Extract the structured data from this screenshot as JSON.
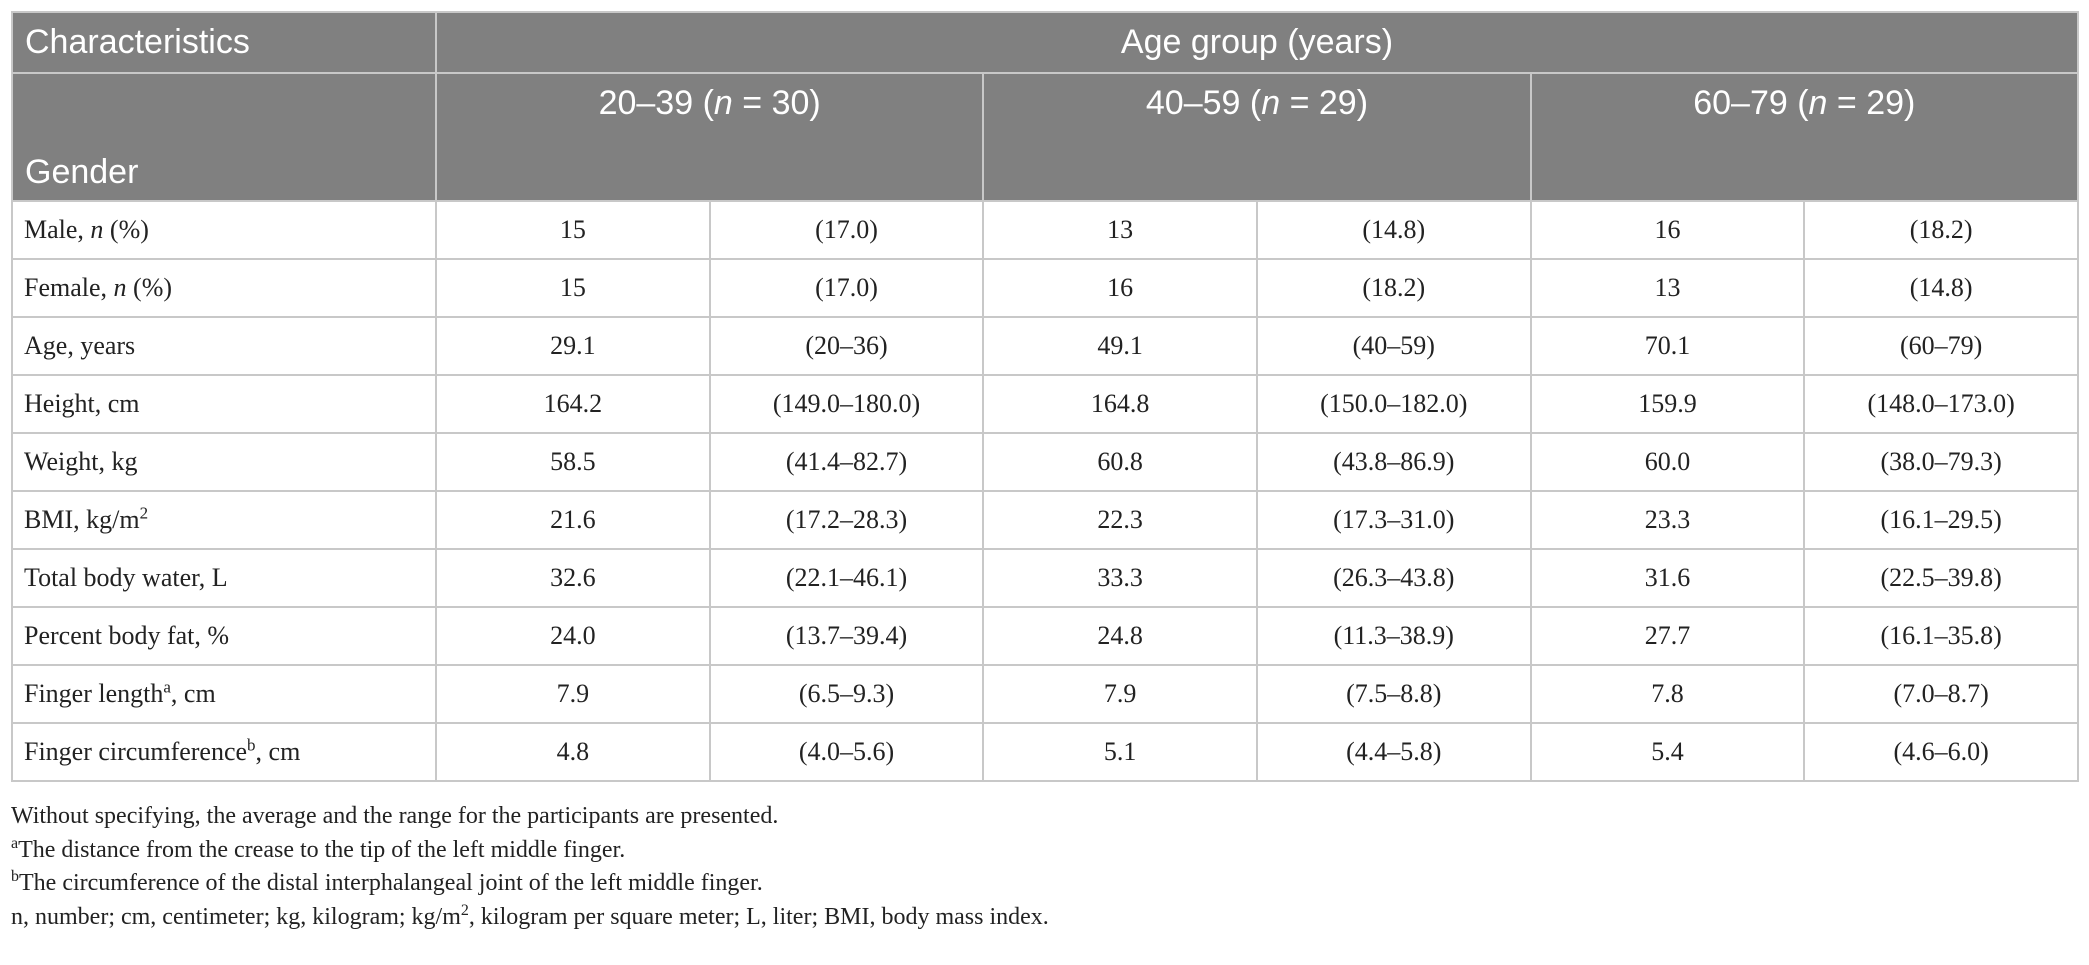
{
  "table": {
    "header": {
      "characteristics_label": "Characteristics",
      "age_group_label": "Age group (years)",
      "gender_label": "Gender",
      "groups": [
        {
          "range": "20–39 (",
          "n_italic": "n",
          "count": " = 30)"
        },
        {
          "range": "40–59 (",
          "n_italic": "n",
          "count": " = 29)"
        },
        {
          "range": "60–79 (",
          "n_italic": "n",
          "count": " = 29)"
        }
      ]
    },
    "rows": [
      {
        "label_pre": "Male, ",
        "label_italic": "n",
        "label_sup": "",
        "label_post": " (%)",
        "values": [
          "15",
          "(17.0)",
          "13",
          "(14.8)",
          "16",
          "(18.2)"
        ]
      },
      {
        "label_pre": "Female, ",
        "label_italic": "n",
        "label_sup": "",
        "label_post": " (%)",
        "values": [
          "15",
          "(17.0)",
          "16",
          "(18.2)",
          "13",
          "(14.8)"
        ]
      },
      {
        "label_pre": "Age, years",
        "label_italic": "",
        "label_sup": "",
        "label_post": "",
        "values": [
          "29.1",
          "(20–36)",
          "49.1",
          "(40–59)",
          "70.1",
          "(60–79)"
        ]
      },
      {
        "label_pre": "Height, cm",
        "label_italic": "",
        "label_sup": "",
        "label_post": "",
        "values": [
          "164.2",
          "(149.0–180.0)",
          "164.8",
          "(150.0–182.0)",
          "159.9",
          "(148.0–173.0)"
        ]
      },
      {
        "label_pre": "Weight, kg",
        "label_italic": "",
        "label_sup": "",
        "label_post": "",
        "values": [
          "58.5",
          "(41.4–82.7)",
          "60.8",
          "(43.8–86.9)",
          "60.0",
          "(38.0–79.3)"
        ]
      },
      {
        "label_pre": "BMI, kg/m",
        "label_italic": "",
        "label_sup": "2",
        "label_post": "",
        "values": [
          "21.6",
          "(17.2–28.3)",
          "22.3",
          "(17.3–31.0)",
          "23.3",
          "(16.1–29.5)"
        ]
      },
      {
        "label_pre": "Total body water, L",
        "label_italic": "",
        "label_sup": "",
        "label_post": "",
        "values": [
          "32.6",
          "(22.1–46.1)",
          "33.3",
          "(26.3–43.8)",
          "31.6",
          "(22.5–39.8)"
        ]
      },
      {
        "label_pre": "Percent body fat, %",
        "label_italic": "",
        "label_sup": "",
        "label_post": "",
        "values": [
          "24.0",
          "(13.7–39.4)",
          "24.8",
          "(11.3–38.9)",
          "27.7",
          "(16.1–35.8)"
        ]
      },
      {
        "label_pre": "Finger length",
        "label_italic": "",
        "label_sup": "a",
        "label_post": ", cm",
        "values": [
          "7.9",
          "(6.5–9.3)",
          "7.9",
          "(7.5–8.8)",
          "7.8",
          "(7.0–8.7)"
        ]
      },
      {
        "label_pre": "Finger circumference",
        "label_italic": "",
        "label_sup": "b",
        "label_post": ", cm",
        "values": [
          "4.8",
          "(4.0–5.6)",
          "5.1",
          "(4.4–5.8)",
          "5.4",
          "(4.6–6.0)"
        ]
      }
    ]
  },
  "notes": {
    "general": "Without specifying, the average and the range for the participants are presented.",
    "footnote_a_marker": "a",
    "footnote_a_text": "The distance from the crease to the tip of the left middle finger.",
    "footnote_b_marker": "b",
    "footnote_b_text": "The circumference of the distal interphalangeal joint of the left middle finger.",
    "abbreviations_pre": "n, number; cm, centimeter; kg, kilogram; kg/m",
    "abbreviations_sup": "2",
    "abbreviations_post": ", kilogram per square meter; L, liter; BMI, body mass index."
  }
}
